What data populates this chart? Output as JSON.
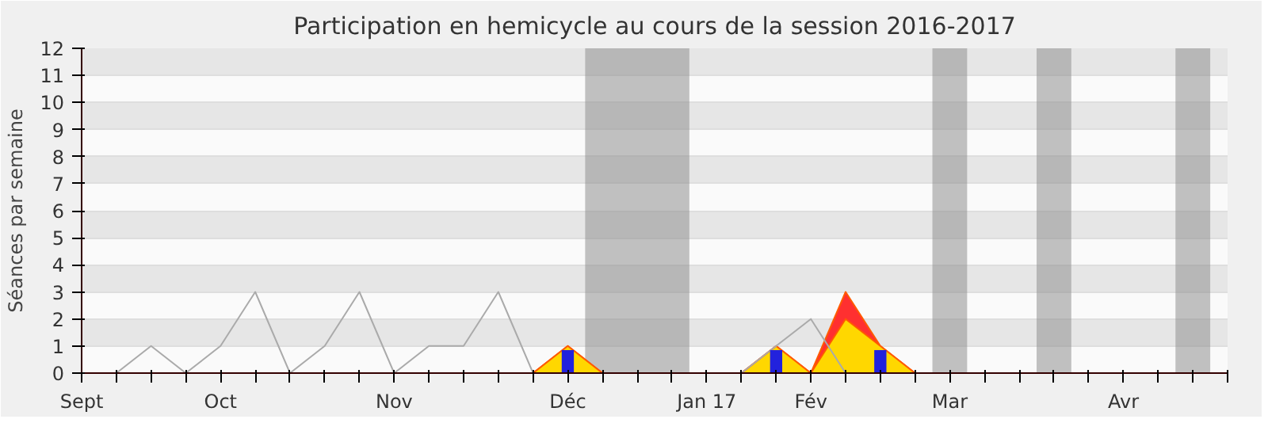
{
  "chart_data": {
    "type": "line",
    "title": "Participation en hemicycle au cours de la session 2016-2017",
    "ylabel": "Séances par semaine",
    "categories": [
      "Sept",
      null,
      null,
      null,
      "Oct",
      null,
      null,
      null,
      null,
      "Nov",
      null,
      null,
      null,
      null,
      "Déc",
      null,
      null,
      null,
      "Jan 17",
      null,
      null,
      "Fév",
      null,
      null,
      null,
      "Mar",
      null,
      null,
      null,
      null,
      "Avr",
      null,
      null,
      null
    ],
    "ylim": [
      0,
      12
    ],
    "yticks": [
      0,
      1,
      2,
      3,
      4,
      5,
      6,
      7,
      8,
      9,
      10,
      11,
      12
    ],
    "grid": "y",
    "series": [
      {
        "type": "area",
        "color": "#ff3030",
        "values": [
          0,
          0,
          0,
          0,
          0,
          0,
          0,
          0,
          0,
          0,
          0,
          0,
          0,
          0,
          1,
          0,
          0,
          0,
          0,
          0,
          1,
          0,
          3,
          1,
          0,
          0,
          0,
          0,
          0,
          0,
          0,
          0,
          0,
          null
        ]
      },
      {
        "type": "area",
        "color": "#ffd700",
        "values": [
          0,
          0,
          0,
          0,
          0,
          0,
          0,
          0,
          0,
          0,
          0,
          0,
          0,
          0,
          1,
          0,
          0,
          0,
          0,
          0,
          1,
          0,
          2,
          1,
          0,
          0,
          0,
          0,
          0,
          0,
          0,
          0,
          0,
          null
        ]
      },
      {
        "color": "#aaaaaa",
        "values": [
          null,
          0,
          1,
          0,
          1,
          3,
          0,
          1,
          3,
          0,
          1,
          1,
          3,
          0,
          null,
          null,
          null,
          null,
          null,
          0,
          1,
          2,
          0,
          null,
          null,
          null,
          null,
          null,
          null,
          null,
          null,
          null,
          null,
          null
        ]
      },
      {
        "type": "bar",
        "color": "#2222dd",
        "values": [
          null,
          null,
          null,
          null,
          null,
          null,
          null,
          null,
          null,
          null,
          null,
          null,
          null,
          null,
          0.85,
          null,
          null,
          null,
          null,
          null,
          0.85,
          null,
          null,
          0.85,
          null,
          null,
          null,
          null,
          null,
          null,
          null,
          null,
          null,
          null
        ]
      }
    ]
  }
}
